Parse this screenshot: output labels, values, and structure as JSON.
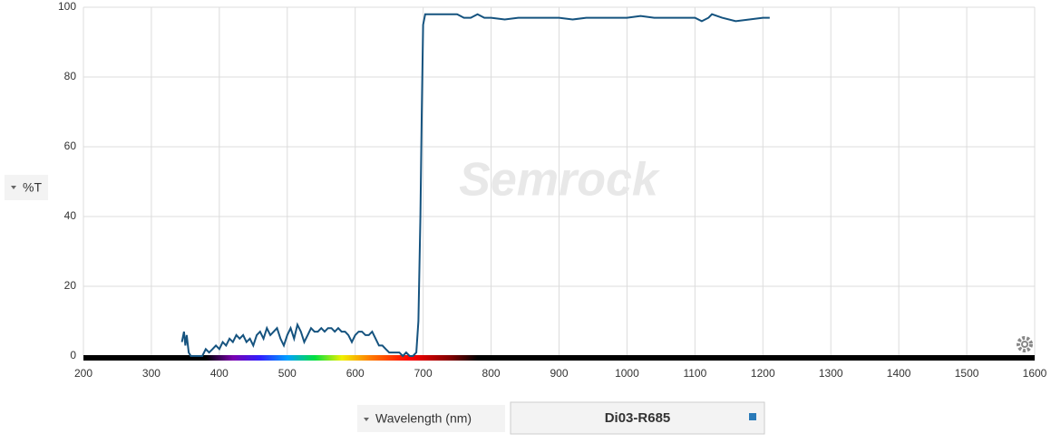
{
  "chart_data": {
    "type": "line",
    "y_label": "%T",
    "x_label": "Wavelength (nm)",
    "watermark": "Semrock",
    "x": [
      345,
      348,
      350,
      352,
      355,
      358,
      365,
      375,
      380,
      385,
      390,
      395,
      400,
      405,
      410,
      415,
      420,
      425,
      430,
      435,
      440,
      445,
      450,
      455,
      460,
      465,
      470,
      475,
      480,
      485,
      490,
      495,
      500,
      505,
      510,
      515,
      520,
      525,
      530,
      535,
      540,
      545,
      550,
      555,
      560,
      565,
      570,
      575,
      580,
      585,
      590,
      595,
      600,
      605,
      610,
      615,
      620,
      625,
      630,
      635,
      640,
      645,
      650,
      655,
      660,
      665,
      670,
      675,
      680,
      685,
      690,
      693,
      696,
      698,
      700,
      703,
      710,
      720,
      730,
      740,
      750,
      760,
      770,
      780,
      790,
      800,
      820,
      840,
      860,
      880,
      900,
      920,
      940,
      960,
      980,
      1000,
      1020,
      1040,
      1060,
      1080,
      1100,
      1110,
      1120,
      1125,
      1140,
      1160,
      1180,
      1200,
      1210
    ],
    "series": [
      {
        "name": "Di03-R685",
        "color": "#15537f",
        "values": [
          4,
          7,
          3,
          6,
          1,
          0,
          0,
          0,
          2,
          1,
          2,
          3,
          2,
          4,
          3,
          5,
          4,
          6,
          5,
          6,
          4,
          5,
          3,
          6,
          7,
          5,
          8,
          6,
          7,
          8,
          5,
          3,
          6,
          8,
          5,
          9,
          7,
          4,
          6,
          8,
          7,
          7,
          8,
          7,
          8,
          8,
          7,
          8,
          7,
          7,
          6,
          4,
          6,
          7,
          7,
          6,
          6,
          7,
          5,
          3,
          3,
          2,
          1,
          1,
          1,
          1,
          0,
          1,
          0,
          0,
          1,
          10,
          40,
          70,
          95,
          98,
          98,
          98,
          98,
          98,
          98,
          97,
          97,
          98,
          97,
          97,
          96.5,
          97,
          97,
          97,
          97,
          96.5,
          97,
          97,
          97,
          97,
          97.5,
          97,
          97,
          97,
          97,
          96,
          97,
          98,
          97,
          96,
          96.5,
          97,
          97
        ]
      }
    ],
    "xlim": [
      200,
      1600
    ],
    "ylim": [
      0,
      100
    ],
    "xticks": [
      200,
      300,
      400,
      500,
      600,
      700,
      800,
      900,
      1000,
      1100,
      1200,
      1300,
      1400,
      1500,
      1600
    ],
    "yticks": [
      0,
      20,
      40,
      60,
      80,
      100
    ],
    "grid": true
  }
}
